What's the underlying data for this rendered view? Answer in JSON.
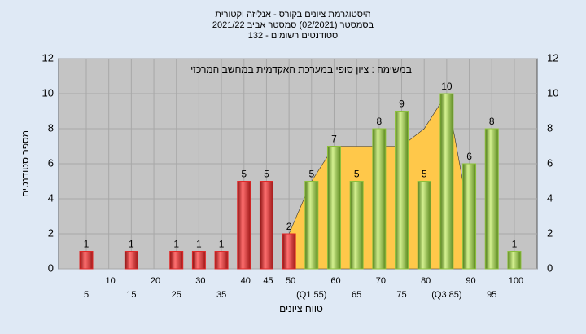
{
  "chart_data": {
    "type": "bar",
    "title": "היסטוגרמת ציונים בקורס - אנליזה וקטורית",
    "subtitle": "בסמסטר  (02/2021)  סמסטר אביב 2021/22",
    "subtitle2": "סטודנטים רשומים - 132",
    "annotation": "במשימה : ציון סופי במערכת האקדמית במחשב המרכזי",
    "x_label": "טווח ציונים",
    "y_label": "מספר סטודנטים",
    "categories": [
      "5",
      "10",
      "15",
      "20",
      "25",
      "30",
      "35",
      "40",
      "45",
      "50",
      "(Q1 55)",
      "60",
      "65",
      "70",
      "75",
      "80",
      "(Q3 85)",
      "90",
      "95",
      "100"
    ],
    "values": [
      1,
      0,
      1,
      0,
      1,
      1,
      1,
      5,
      5,
      2,
      5,
      7,
      5,
      8,
      9,
      5,
      10,
      6,
      8,
      1
    ],
    "colors": [
      "#e02828",
      "#e02828",
      "#e02828",
      "#e02828",
      "#e02828",
      "#e02828",
      "#e02828",
      "#e02828",
      "#e02828",
      "#e02828",
      "#8cbf3c",
      "#8cbf3c",
      "#8cbf3c",
      "#8cbf3c",
      "#8cbf3c",
      "#8cbf3c",
      "#8cbf3c",
      "#8cbf3c",
      "#8cbf3c",
      "#8cbf3c"
    ],
    "area": {
      "color": "#ffc84a",
      "values": [
        null,
        null,
        null,
        null,
        null,
        null,
        null,
        null,
        null,
        2,
        5,
        7,
        7,
        7,
        7,
        8,
        10,
        3,
        null,
        null
      ]
    },
    "ylim": [
      0,
      12
    ],
    "yticks": [
      0,
      2,
      4,
      6,
      8,
      10,
      12
    ],
    "grid": true
  }
}
